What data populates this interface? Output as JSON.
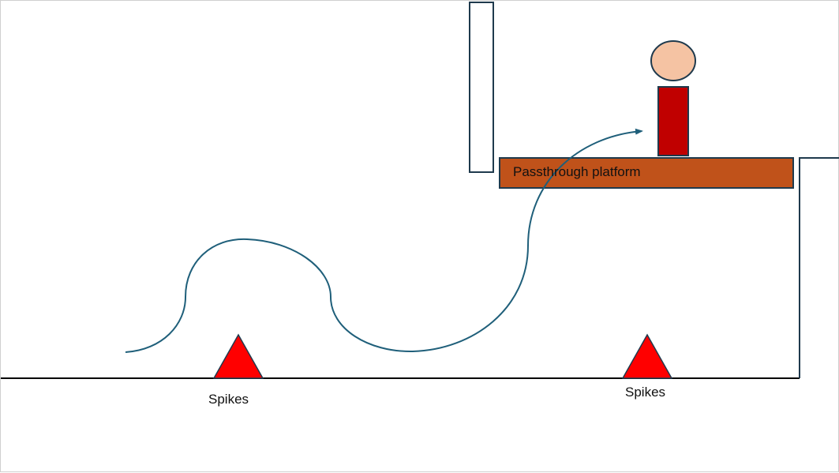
{
  "scene": {
    "platform": {
      "label": "Passthrough platform",
      "fill_color": "#c0521a",
      "stroke_color": "#1f3a4d"
    },
    "spikes": [
      {
        "label": "Spikes"
      },
      {
        "label": "Spikes"
      }
    ],
    "spike_color": "#ff0000",
    "player": {
      "head_color": "#f5c3a3",
      "body_color": "#c00000"
    },
    "jump_path_color": "#1f5f7a",
    "wall_stroke_color": "#1f3a4d",
    "ground_color": "#000000"
  }
}
